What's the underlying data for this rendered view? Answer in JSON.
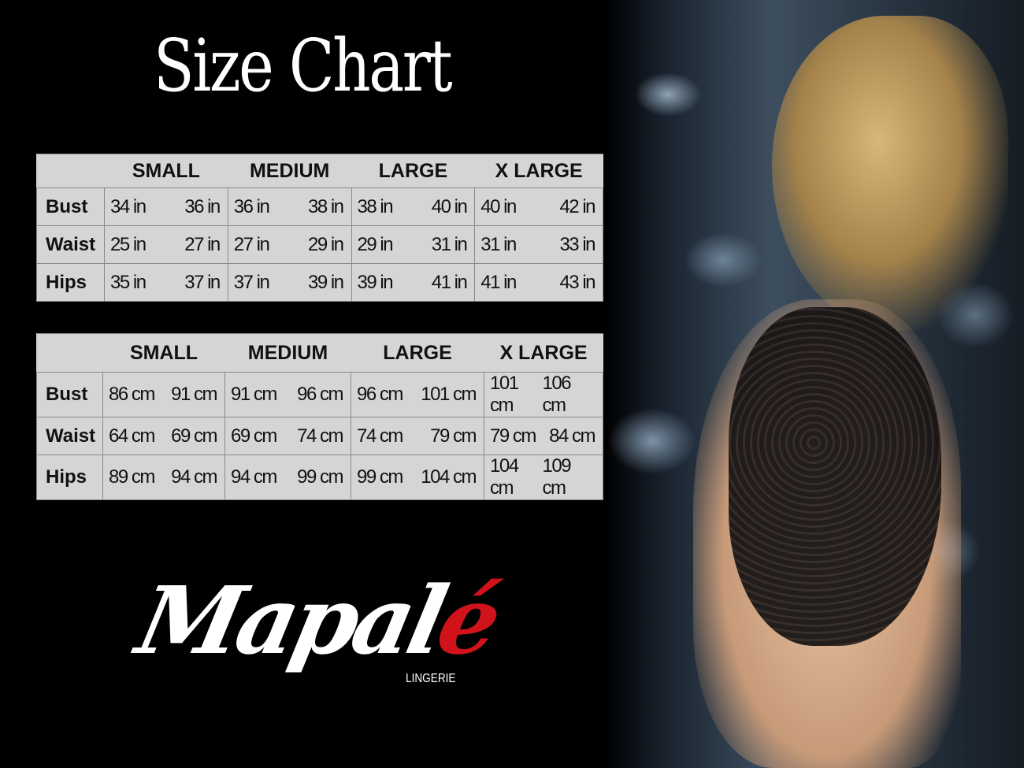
{
  "title": "Size Chart",
  "sizes": [
    "SMALL",
    "MEDIUM",
    "LARGE",
    "X LARGE"
  ],
  "inches": {
    "rows": [
      {
        "label": "Bust",
        "values": [
          "34 in",
          "36 in",
          "36 in",
          "38 in",
          "38 in",
          "40 in",
          "40 in",
          "42 in"
        ]
      },
      {
        "label": "Waist",
        "values": [
          "25 in",
          "27 in",
          "27 in",
          "29 in",
          "29 in",
          "31 in",
          "31 in",
          "33 in"
        ]
      },
      {
        "label": "Hips",
        "values": [
          "35 in",
          "37 in",
          "37 in",
          "39 in",
          "39 in",
          "41 in",
          "41 in",
          "43 in"
        ]
      }
    ]
  },
  "cm": {
    "rows": [
      {
        "label": "Bust",
        "values": [
          "86 cm",
          "91 cm",
          "91 cm",
          "96 cm",
          "96 cm",
          "101 cm",
          "101 cm",
          "106 cm"
        ]
      },
      {
        "label": "Waist",
        "values": [
          "64 cm",
          "69 cm",
          "69 cm",
          "74 cm",
          "74 cm",
          "79  cm",
          "79 cm",
          "84 cm"
        ]
      },
      {
        "label": "Hips",
        "values": [
          "89 cm",
          "94 cm",
          "94 cm",
          "99 cm",
          "99 cm",
          "104 cm",
          "104 cm",
          "109 cm"
        ]
      }
    ]
  },
  "logo": {
    "name": "Mapal",
    "accent": "é",
    "subtitle": "LINGERIE",
    "accent_color": "#d0121b"
  },
  "colors": {
    "background": "#000000",
    "table_bg": "#d5d5d5"
  }
}
